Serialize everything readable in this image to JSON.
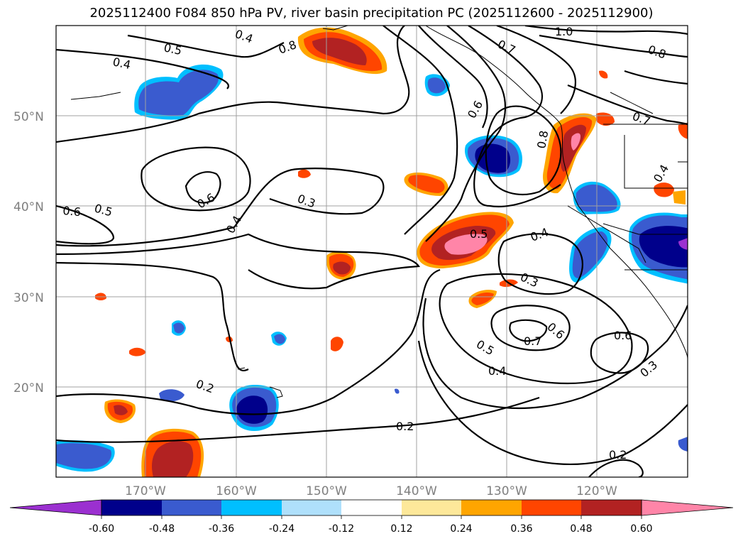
{
  "title": "2025112400 F084 850 hPa PV, river basin precipitation PC (2025112600 - 2025112900)",
  "map": {
    "lat_labels": [
      "50°N",
      "40°N",
      "30°N",
      "20°N"
    ],
    "lon_labels": [
      "170°W",
      "160°W",
      "150°W",
      "140°W",
      "130°W",
      "120°W"
    ],
    "contour_labels": [
      "0.4",
      "0.5",
      "0.4",
      "0.8",
      "1.0",
      "0.8",
      "0.7",
      "0.6",
      "0.7",
      "0.6",
      "0.5",
      "0.6",
      "0.3",
      "0.4",
      "0.5",
      "0.4",
      "0.3",
      "0.6",
      "0.7",
      "0.6",
      "0.5",
      "0.4",
      "0.3",
      "0.2",
      "0.2",
      "0.2",
      "0.4",
      "0.8"
    ]
  },
  "colorbar": {
    "ticks": [
      "-0.60",
      "-0.48",
      "-0.36",
      "-0.24",
      "-0.12",
      "0.12",
      "0.24",
      "0.36",
      "0.48",
      "0.60"
    ],
    "colors": [
      "#9b30d0",
      "#00008b",
      "#3a5bcf",
      "#00bfff",
      "#afe0fb",
      "#ffffff",
      "#fde89a",
      "#ffa500",
      "#ff4500",
      "#b22222",
      "#ff85a8"
    ]
  },
  "palette": {
    "pos_light": "#fde89a",
    "pos_orange": "#ffa500",
    "pos_redorange": "#ff4500",
    "pos_darkred": "#b22222",
    "pos_pink": "#ff85a8",
    "neg_navy": "#00008b",
    "neg_royal": "#3a5bcf",
    "neg_sky": "#00bfff",
    "neg_pale": "#afe0fb"
  }
}
